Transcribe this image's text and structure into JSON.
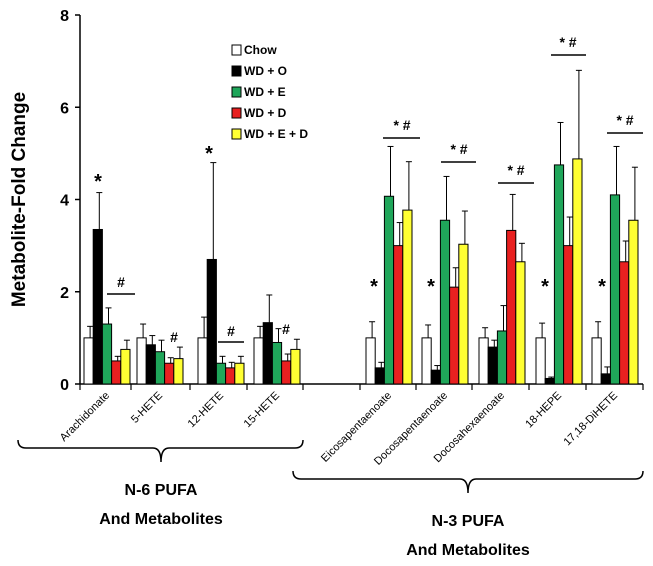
{
  "chart_data": {
    "type": "bar",
    "ylabel": "Metabolite-Fold Change",
    "xlabel": "",
    "ylim": [
      0,
      8
    ],
    "yticks": [
      0,
      2,
      4,
      6,
      8
    ],
    "categories": [
      "Arachidonate",
      "5-HETE",
      "12-HETE",
      "15-HETE",
      "Eicosapentaenoate",
      "Docosapentaenoate",
      "Docosahexaenoate",
      "18-HEPE",
      "17,18-DiHETE"
    ],
    "series": [
      {
        "name": "Chow",
        "color": "#ffffff",
        "values": [
          1.0,
          1.0,
          1.0,
          1.0,
          1.0,
          1.0,
          1.0,
          1.0,
          1.0
        ],
        "errors": [
          0.25,
          0.3,
          0.45,
          0.25,
          0.35,
          0.28,
          0.22,
          0.32,
          0.35
        ]
      },
      {
        "name": "WD + O",
        "color": "#000000",
        "values": [
          3.35,
          0.85,
          2.7,
          1.33,
          0.35,
          0.3,
          0.8,
          0.12,
          0.22
        ],
        "errors": [
          0.8,
          0.2,
          2.1,
          0.6,
          0.12,
          0.1,
          0.15,
          0.03,
          0.15
        ]
      },
      {
        "name": "WD + E",
        "color": "#1fa65a",
        "values": [
          1.3,
          0.7,
          0.45,
          0.9,
          4.07,
          3.55,
          1.15,
          4.75,
          4.1
        ],
        "errors": [
          0.35,
          0.25,
          0.15,
          0.3,
          1.08,
          0.95,
          0.55,
          0.92,
          1.05
        ]
      },
      {
        "name": "WD + D",
        "color": "#e82020",
        "values": [
          0.5,
          0.45,
          0.35,
          0.5,
          3.0,
          2.1,
          3.33,
          3.0,
          2.65
        ],
        "errors": [
          0.1,
          0.12,
          0.12,
          0.15,
          0.5,
          0.42,
          0.78,
          0.62,
          0.45
        ]
      },
      {
        "name": "WD + E + D",
        "color": "#ffff33",
        "values": [
          0.75,
          0.55,
          0.45,
          0.75,
          3.77,
          3.03,
          2.65,
          4.88,
          3.55
        ],
        "errors": [
          0.2,
          0.25,
          0.15,
          0.22,
          1.05,
          0.72,
          0.4,
          1.92,
          1.15
        ]
      }
    ],
    "annotations": {
      "star": "*",
      "hash": "#",
      "star_hash": "* #"
    },
    "groups": [
      {
        "label_line1": "N-6 PUFA",
        "label_line2": "And Metabolites"
      },
      {
        "label_line1": "N-3 PUFA",
        "label_line2": "And Metabolites"
      }
    ]
  }
}
